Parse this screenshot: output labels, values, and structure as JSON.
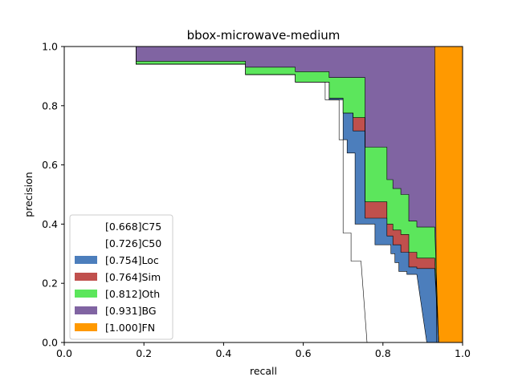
{
  "chart_data": {
    "type": "area",
    "title": "bbox-microwave-medium",
    "xlabel": "recall",
    "ylabel": "precision",
    "xlim": [
      0,
      1
    ],
    "ylim": [
      0,
      1
    ],
    "xticks": [
      "0.0",
      "0.2",
      "0.4",
      "0.6",
      "0.8",
      "1.0"
    ],
    "yticks": [
      "0.0",
      "0.2",
      "0.4",
      "0.6",
      "0.8",
      "1.0"
    ],
    "legend_position": "lower-left",
    "grid": false,
    "series": [
      {
        "name": "[0.668]C75",
        "color": "#ffffff",
        "points": [
          [
            0,
            1
          ],
          [
            0.18,
            1
          ],
          [
            0.18,
            0.94
          ],
          [
            0.455,
            0.94
          ],
          [
            0.455,
            0.905
          ],
          [
            0.58,
            0.905
          ],
          [
            0.58,
            0.88
          ],
          [
            0.655,
            0.88
          ],
          [
            0.655,
            0.82
          ],
          [
            0.7,
            0.82
          ],
          [
            0.7,
            0.37
          ],
          [
            0.72,
            0.37
          ],
          [
            0.72,
            0.275
          ],
          [
            0.745,
            0.275
          ],
          [
            0.745,
            0.275
          ],
          [
            0.76,
            0.0
          ]
        ]
      },
      {
        "name": "[0.726]C50",
        "color": "#ffffff",
        "points": [
          [
            0,
            1
          ],
          [
            0.18,
            1
          ],
          [
            0.18,
            0.94
          ],
          [
            0.455,
            0.94
          ],
          [
            0.455,
            0.905
          ],
          [
            0.58,
            0.905
          ],
          [
            0.58,
            0.88
          ],
          [
            0.665,
            0.88
          ],
          [
            0.665,
            0.82
          ],
          [
            0.69,
            0.82
          ],
          [
            0.69,
            0.685
          ],
          [
            0.71,
            0.685
          ],
          [
            0.71,
            0.64
          ],
          [
            0.73,
            0.64
          ],
          [
            0.73,
            0.4
          ],
          [
            0.78,
            0.4
          ],
          [
            0.78,
            0.33
          ],
          [
            0.82,
            0.33
          ],
          [
            0.82,
            0.3
          ],
          [
            0.83,
            0.3
          ],
          [
            0.83,
            0.27
          ],
          [
            0.84,
            0.27
          ],
          [
            0.84,
            0.24
          ],
          [
            0.86,
            0.24
          ],
          [
            0.86,
            0.23
          ],
          [
            0.885,
            0.23
          ],
          [
            0.91,
            0.0
          ]
        ]
      },
      {
        "name": "[0.754]Loc",
        "color": "#4c7ebc",
        "points": [
          [
            0,
            1
          ],
          [
            0.18,
            1
          ],
          [
            0.18,
            0.94
          ],
          [
            0.455,
            0.94
          ],
          [
            0.455,
            0.905
          ],
          [
            0.58,
            0.905
          ],
          [
            0.58,
            0.88
          ],
          [
            0.665,
            0.88
          ],
          [
            0.665,
            0.825
          ],
          [
            0.7,
            0.825
          ],
          [
            0.7,
            0.775
          ],
          [
            0.725,
            0.775
          ],
          [
            0.725,
            0.715
          ],
          [
            0.755,
            0.715
          ],
          [
            0.755,
            0.42
          ],
          [
            0.81,
            0.42
          ],
          [
            0.81,
            0.36
          ],
          [
            0.825,
            0.36
          ],
          [
            0.825,
            0.33
          ],
          [
            0.845,
            0.33
          ],
          [
            0.845,
            0.305
          ],
          [
            0.865,
            0.305
          ],
          [
            0.865,
            0.255
          ],
          [
            0.885,
            0.255
          ],
          [
            0.885,
            0.25
          ],
          [
            0.93,
            0.25
          ],
          [
            0.94,
            0.0
          ]
        ]
      },
      {
        "name": "[0.764]Sim",
        "color": "#c0504d",
        "points": [
          [
            0,
            1
          ],
          [
            0.18,
            1
          ],
          [
            0.18,
            0.94
          ],
          [
            0.455,
            0.94
          ],
          [
            0.455,
            0.905
          ],
          [
            0.58,
            0.905
          ],
          [
            0.58,
            0.88
          ],
          [
            0.665,
            0.88
          ],
          [
            0.665,
            0.825
          ],
          [
            0.7,
            0.825
          ],
          [
            0.7,
            0.775
          ],
          [
            0.725,
            0.775
          ],
          [
            0.725,
            0.76
          ],
          [
            0.755,
            0.76
          ],
          [
            0.755,
            0.475
          ],
          [
            0.81,
            0.475
          ],
          [
            0.81,
            0.4
          ],
          [
            0.825,
            0.4
          ],
          [
            0.825,
            0.38
          ],
          [
            0.845,
            0.38
          ],
          [
            0.845,
            0.365
          ],
          [
            0.865,
            0.365
          ],
          [
            0.865,
            0.305
          ],
          [
            0.885,
            0.305
          ],
          [
            0.885,
            0.285
          ],
          [
            0.93,
            0.285
          ],
          [
            0.94,
            0.0
          ]
        ]
      },
      {
        "name": "[0.812]Oth",
        "color": "#5ce65c",
        "points": [
          [
            0,
            1
          ],
          [
            0.18,
            1
          ],
          [
            0.18,
            0.95
          ],
          [
            0.455,
            0.95
          ],
          [
            0.455,
            0.93
          ],
          [
            0.58,
            0.93
          ],
          [
            0.58,
            0.915
          ],
          [
            0.665,
            0.915
          ],
          [
            0.665,
            0.895
          ],
          [
            0.755,
            0.895
          ],
          [
            0.755,
            0.66
          ],
          [
            0.81,
            0.66
          ],
          [
            0.81,
            0.55
          ],
          [
            0.825,
            0.55
          ],
          [
            0.825,
            0.52
          ],
          [
            0.845,
            0.52
          ],
          [
            0.845,
            0.5
          ],
          [
            0.865,
            0.5
          ],
          [
            0.865,
            0.41
          ],
          [
            0.885,
            0.41
          ],
          [
            0.885,
            0.39
          ],
          [
            0.93,
            0.39
          ],
          [
            0.94,
            0.0
          ]
        ]
      },
      {
        "name": "[0.931]BG",
        "color": "#8064a2",
        "points": [
          [
            0,
            1
          ],
          [
            0.93,
            1
          ],
          [
            0.935,
            0.0
          ]
        ]
      },
      {
        "name": "[1.000]FN",
        "color": "#ff9900",
        "points": [
          [
            0,
            1
          ],
          [
            1,
            1
          ],
          [
            1,
            0.0
          ]
        ]
      }
    ]
  }
}
